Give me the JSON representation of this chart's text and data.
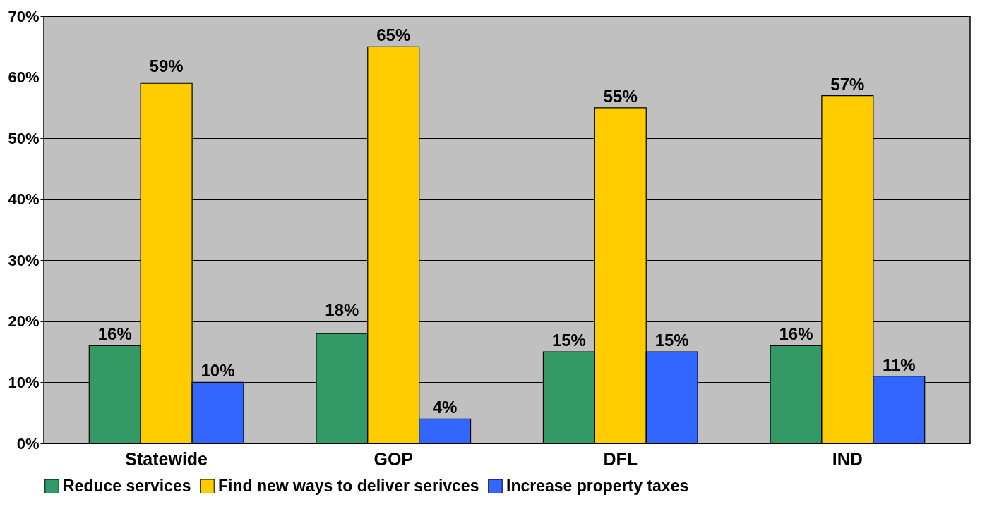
{
  "chart_data": {
    "type": "bar",
    "categories": [
      "Statewide",
      "GOP",
      "DFL",
      "IND"
    ],
    "series": [
      {
        "name": "Reduce services",
        "color": "#339966",
        "values": [
          16,
          18,
          15,
          16
        ],
        "value_labels": [
          "16%",
          "18%",
          "15%",
          "16%"
        ]
      },
      {
        "name": "Find new ways to deliver serivces",
        "color": "#ffcc00",
        "values": [
          59,
          65,
          55,
          57
        ],
        "value_labels": [
          "59%",
          "65%",
          "55%",
          "57%"
        ]
      },
      {
        "name": "Increase property taxes",
        "color": "#3366ff",
        "values": [
          10,
          4,
          15,
          11
        ],
        "value_labels": [
          "10%",
          "4%",
          "15%",
          "11%"
        ]
      }
    ],
    "ylim": [
      0,
      70
    ],
    "yticks": [
      {
        "value": 0,
        "label": "0%"
      },
      {
        "value": 10,
        "label": "10%"
      },
      {
        "value": 20,
        "label": "20%"
      },
      {
        "value": 30,
        "label": "30%"
      },
      {
        "value": 40,
        "label": "40%"
      },
      {
        "value": 50,
        "label": "50%"
      },
      {
        "value": 60,
        "label": "60%"
      },
      {
        "value": 70,
        "label": "70%"
      }
    ],
    "grid": "y",
    "legend": "bottom"
  }
}
